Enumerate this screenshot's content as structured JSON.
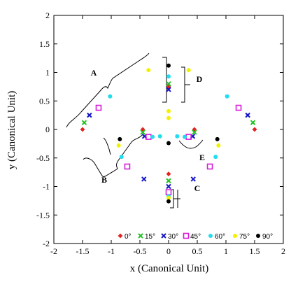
{
  "chart_data": {
    "type": "scatter",
    "xlabel": "x (Canonical Unit)",
    "ylabel": "y (Canonical Unit)",
    "xlim": [
      -2,
      2
    ],
    "ylim": [
      -2,
      2
    ],
    "xticks": [
      -2,
      -1.5,
      -1,
      -0.5,
      0,
      0.5,
      1,
      1.5,
      2
    ],
    "yticks": [
      -2,
      -1.5,
      -1,
      -0.5,
      0,
      0.5,
      1,
      1.5,
      2
    ],
    "grid": false,
    "legend_position": "bottom",
    "series": [
      {
        "name": "0°",
        "color": "#e32222",
        "marker": "diamond",
        "points": [
          [
            -1.5,
            0
          ],
          [
            1.5,
            0
          ],
          [
            0,
            0.75
          ],
          [
            0,
            -0.78
          ],
          [
            -0.45,
            0
          ],
          [
            0.45,
            0
          ]
        ]
      },
      {
        "name": "15°",
        "color": "#22c222",
        "marker": "x",
        "points": [
          [
            -1.47,
            0.12
          ],
          [
            1.47,
            0.12
          ],
          [
            0,
            0.8
          ],
          [
            0,
            -0.9
          ],
          [
            -0.45,
            -0.05
          ],
          [
            0.45,
            -0.05
          ]
        ]
      },
      {
        "name": "30°",
        "color": "#1515c8",
        "marker": "x",
        "points": [
          [
            -1.38,
            0.25
          ],
          [
            1.38,
            0.25
          ],
          [
            0,
            0.7
          ],
          [
            0,
            -1.0
          ],
          [
            -0.43,
            -0.87
          ],
          [
            0.43,
            -0.87
          ],
          [
            -0.42,
            -0.12
          ],
          [
            0.42,
            -0.12
          ]
        ]
      },
      {
        "name": "45°",
        "color": "#d81cd8",
        "marker": "square",
        "points": [
          [
            -1.22,
            0.38
          ],
          [
            1.22,
            0.38
          ],
          [
            0,
            -1.1
          ],
          [
            -0.35,
            -0.13
          ],
          [
            0.35,
            -0.13
          ],
          [
            -0.72,
            -0.65
          ],
          [
            0.72,
            -0.65
          ]
        ]
      },
      {
        "name": "60°",
        "color": "#22ddee",
        "marker": "circle",
        "points": [
          [
            -1.02,
            0.58
          ],
          [
            1.02,
            0.58
          ],
          [
            0,
            0.93
          ],
          [
            0,
            -1.17
          ],
          [
            -0.82,
            -0.48
          ],
          [
            0.82,
            -0.48
          ],
          [
            -0.28,
            -0.13
          ],
          [
            0.28,
            -0.13
          ],
          [
            -0.15,
            -0.12
          ],
          [
            0.15,
            -0.12
          ]
        ]
      },
      {
        "name": "75°",
        "color": "#f2f200",
        "marker": "circle",
        "points": [
          [
            -0.35,
            1.04
          ],
          [
            0.35,
            1.04
          ],
          [
            0,
            0.32
          ],
          [
            0,
            0.2
          ],
          [
            -0.87,
            -0.28
          ],
          [
            0.87,
            -0.28
          ],
          [
            0,
            -1.2
          ]
        ]
      },
      {
        "name": "90°",
        "color": "#000000",
        "marker": "circle",
        "points": [
          [
            0,
            1.12
          ],
          [
            0,
            -0.24
          ],
          [
            0,
            -1.26
          ],
          [
            -0.85,
            -0.17
          ],
          [
            0.85,
            -0.17
          ]
        ]
      }
    ],
    "annotations": [
      "A",
      "B",
      "C",
      "D",
      "E"
    ]
  }
}
